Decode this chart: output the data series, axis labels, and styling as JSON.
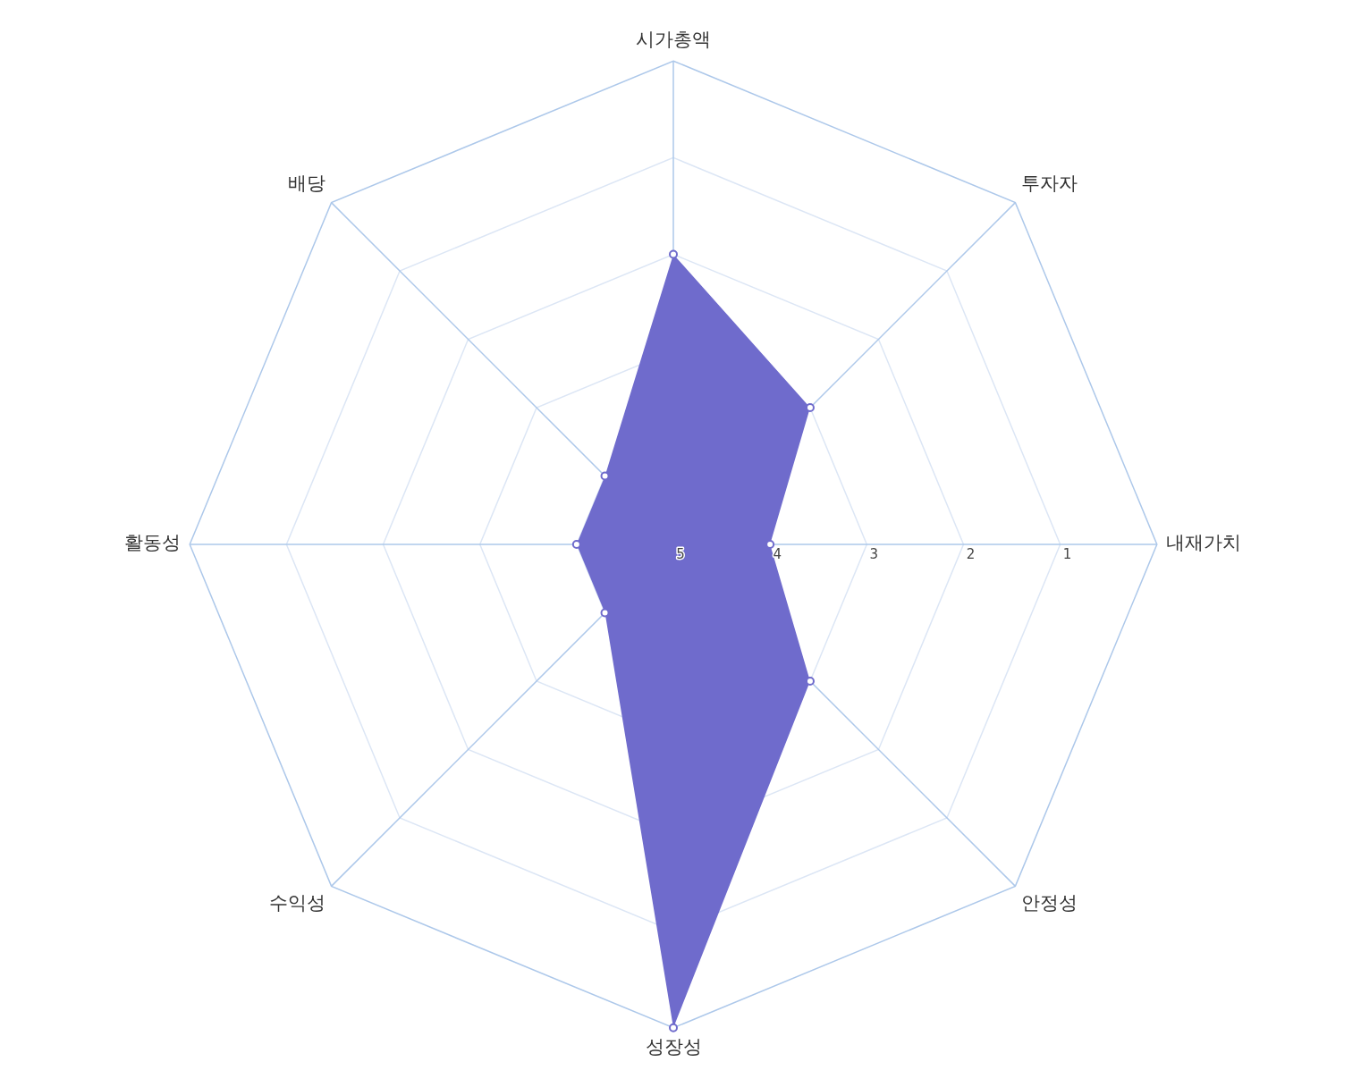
{
  "chart_data": {
    "type": "radar",
    "categories": [
      "시가총액",
      "투자자",
      "내재가치",
      "안정성",
      "성장성",
      "수익성",
      "활동성",
      "배당"
    ],
    "series": [
      {
        "values": [
          2,
          3,
          4,
          3,
          0,
          4,
          4,
          4
        ],
        "color": "#6f6bcc"
      }
    ],
    "ylim": [
      5,
      0
    ],
    "yticks": [
      5,
      4,
      3,
      2,
      1
    ],
    "grid": true,
    "legend": false,
    "marker": "circle"
  }
}
